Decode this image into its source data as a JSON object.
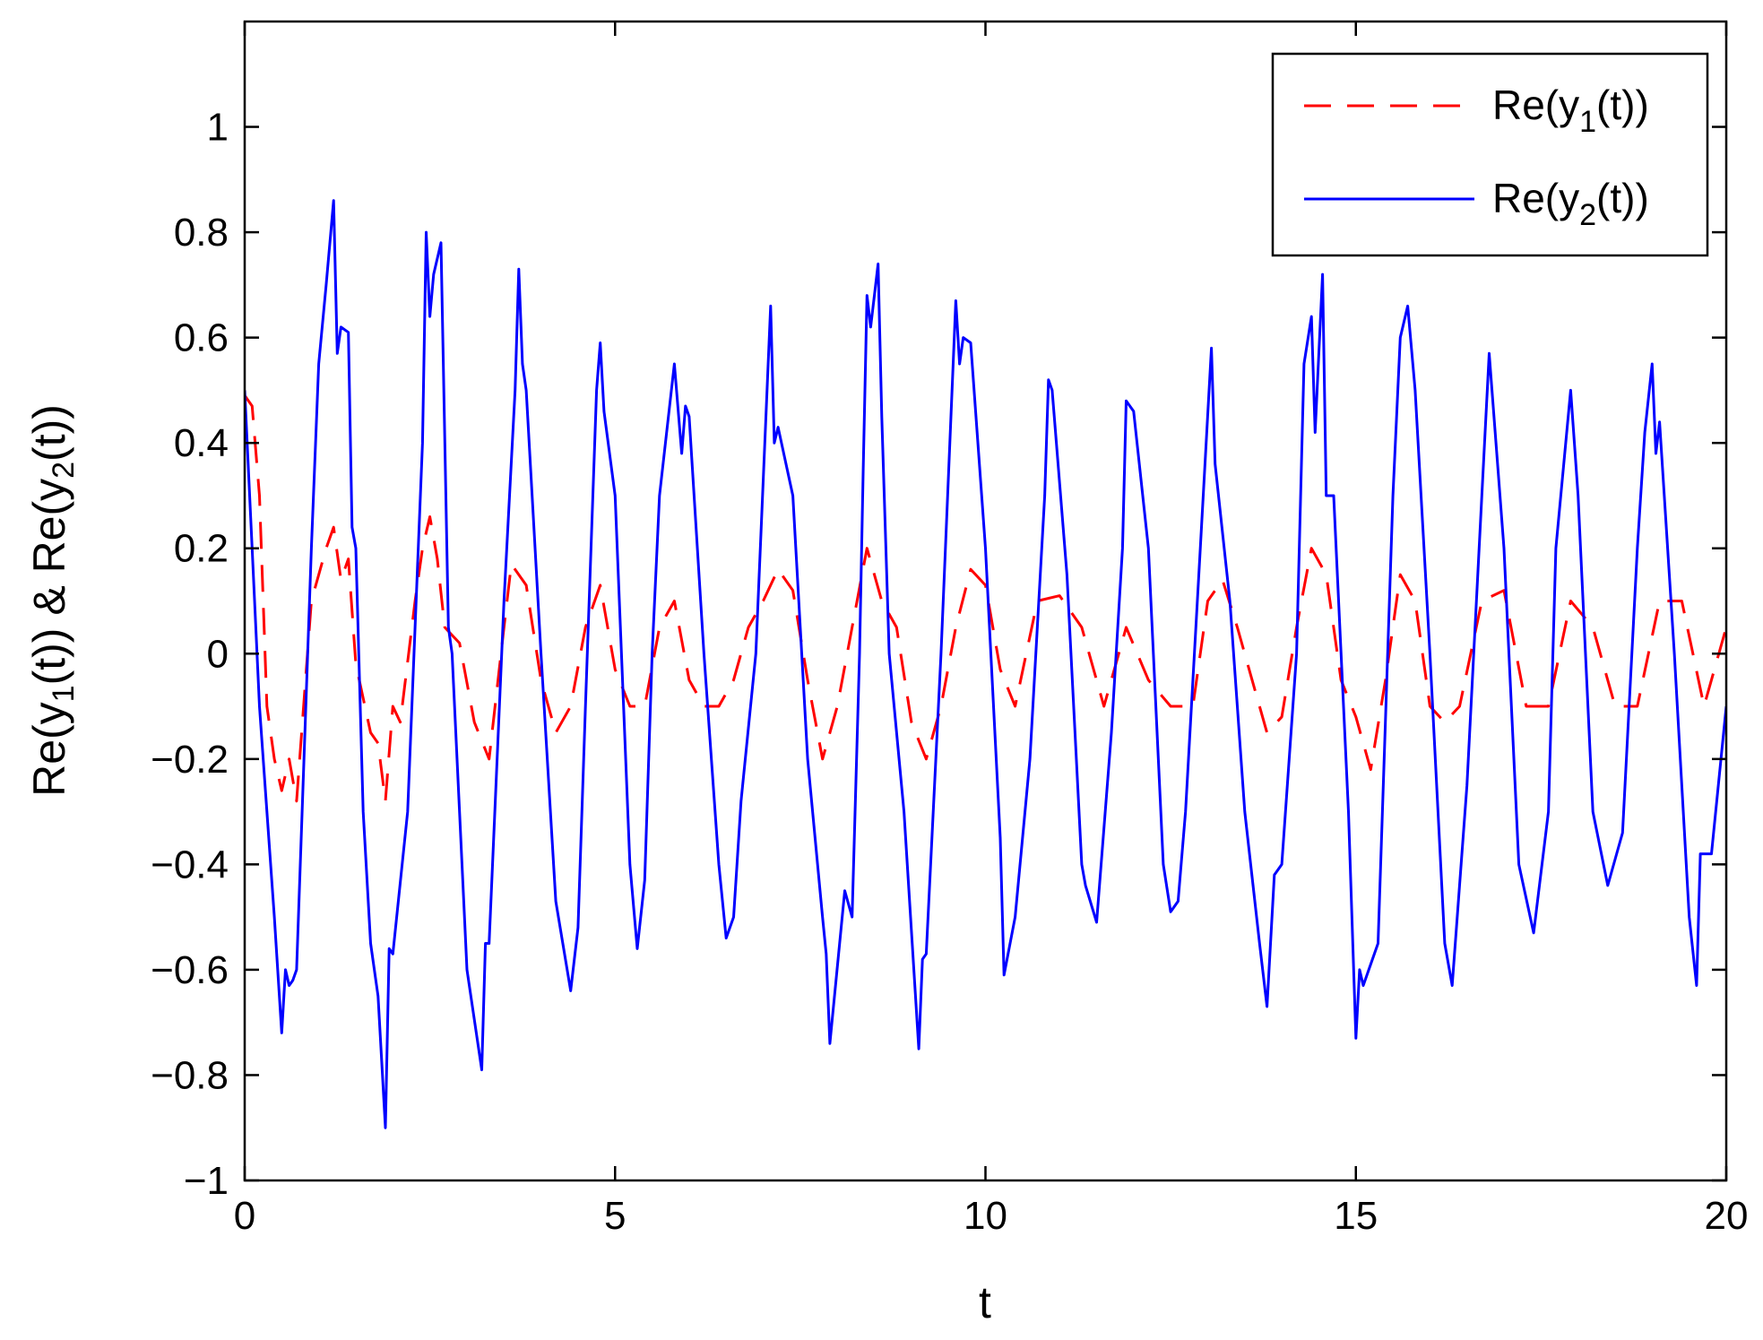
{
  "chart_data": {
    "type": "line",
    "title": "",
    "xlabel": "t",
    "ylabel": "Re(y1(t)) & Re(y2(t))",
    "xlim": [
      0,
      20
    ],
    "ylim": [
      -1,
      1.2
    ],
    "xticks": [
      0,
      5,
      10,
      15,
      20
    ],
    "xtick_labels": [
      "0",
      "5",
      "10",
      "15",
      "20"
    ],
    "yticks": [
      -1,
      -0.8,
      -0.6,
      -0.4,
      -0.2,
      0,
      0.2,
      0.4,
      0.6,
      0.8,
      1
    ],
    "ytick_labels": [
      "−1",
      "−0.8",
      "−0.6",
      "−0.4",
      "−0.2",
      "0",
      "0.2",
      "0.4",
      "0.6",
      "0.8",
      "1"
    ],
    "grid": false,
    "legend_position": "top-right",
    "series": [
      {
        "name": "Re(y1(t))",
        "color": "#ff0000",
        "style": "dashed",
        "x": [
          0,
          0.1,
          0.2,
          0.3,
          0.4,
          0.5,
          0.6,
          0.7,
          0.9,
          1.1,
          1.2,
          1.3,
          1.4,
          1.5,
          1.7,
          1.8,
          1.9,
          2.0,
          2.1,
          2.3,
          2.4,
          2.5,
          2.6,
          2.7,
          2.9,
          3.1,
          3.3,
          3.5,
          3.6,
          3.8,
          4.0,
          4.2,
          4.4,
          4.6,
          4.8,
          5.0,
          5.2,
          5.4,
          5.6,
          5.8,
          6.0,
          6.2,
          6.4,
          6.6,
          6.8,
          7.0,
          7.2,
          7.4,
          7.6,
          7.8,
          8.0,
          8.2,
          8.4,
          8.6,
          8.8,
          9.0,
          9.2,
          9.4,
          9.6,
          9.8,
          10.0,
          10.2,
          10.4,
          10.7,
          11.0,
          11.3,
          11.6,
          11.9,
          12.2,
          12.5,
          12.8,
          13.0,
          13.2,
          13.4,
          13.6,
          13.8,
          14.0,
          14.2,
          14.4,
          14.6,
          14.8,
          15.0,
          15.2,
          15.4,
          15.6,
          15.8,
          16.0,
          16.2,
          16.4,
          16.7,
          17.0,
          17.3,
          17.6,
          17.9,
          18.2,
          18.5,
          18.8,
          19.1,
          19.4,
          19.7,
          20.0
        ],
        "values": [
          0.49,
          0.47,
          0.3,
          -0.1,
          -0.2,
          -0.26,
          -0.2,
          -0.28,
          0.1,
          0.2,
          0.24,
          0.14,
          0.18,
          -0.02,
          -0.15,
          -0.17,
          -0.28,
          -0.1,
          -0.13,
          0.1,
          0.2,
          0.26,
          0.18,
          0.05,
          0.02,
          -0.13,
          -0.2,
          0.05,
          0.17,
          0.13,
          -0.05,
          -0.15,
          -0.1,
          0.05,
          0.13,
          -0.03,
          -0.1,
          -0.1,
          0.05,
          0.1,
          -0.05,
          -0.1,
          -0.1,
          -0.05,
          0.05,
          0.1,
          0.16,
          0.12,
          -0.05,
          -0.2,
          -0.1,
          0.05,
          0.2,
          0.1,
          0.05,
          -0.13,
          -0.2,
          -0.1,
          0.05,
          0.16,
          0.13,
          -0.03,
          -0.1,
          0.1,
          0.11,
          0.05,
          -0.1,
          0.05,
          -0.05,
          -0.1,
          -0.1,
          0.1,
          0.14,
          0.05,
          -0.05,
          -0.15,
          -0.12,
          0.05,
          0.2,
          0.15,
          -0.05,
          -0.12,
          -0.22,
          -0.05,
          0.15,
          0.1,
          -0.1,
          -0.13,
          -0.1,
          0.1,
          0.12,
          -0.1,
          -0.1,
          0.1,
          0.05,
          -0.1,
          -0.1,
          0.1,
          0.1,
          -0.1,
          0.05
        ]
      },
      {
        "name": "Re(y2(t))",
        "color": "#0000ff",
        "style": "solid",
        "x": [
          0,
          0.1,
          0.2,
          0.3,
          0.4,
          0.5,
          0.55,
          0.6,
          0.65,
          0.7,
          0.9,
          1.0,
          1.1,
          1.2,
          1.25,
          1.3,
          1.4,
          1.45,
          1.5,
          1.6,
          1.7,
          1.8,
          1.9,
          1.95,
          2.0,
          2.2,
          2.4,
          2.45,
          2.5,
          2.55,
          2.65,
          2.75,
          2.8,
          3.0,
          3.2,
          3.25,
          3.3,
          3.5,
          3.65,
          3.7,
          3.75,
          3.8,
          4.0,
          4.2,
          4.4,
          4.5,
          4.6,
          4.75,
          4.8,
          4.85,
          5.0,
          5.2,
          5.3,
          5.4,
          5.5,
          5.6,
          5.8,
          5.9,
          5.95,
          6.0,
          6.2,
          6.4,
          6.5,
          6.6,
          6.7,
          6.9,
          7.1,
          7.15,
          7.2,
          7.4,
          7.6,
          7.8,
          7.85,
          7.9,
          8.1,
          8.2,
          8.3,
          8.35,
          8.4,
          8.45,
          8.55,
          8.6,
          8.7,
          8.9,
          9.1,
          9.15,
          9.2,
          9.4,
          9.6,
          9.65,
          9.7,
          9.8,
          10.0,
          10.2,
          10.25,
          10.4,
          10.6,
          10.8,
          10.85,
          10.9,
          11.1,
          11.3,
          11.35,
          11.5,
          11.7,
          11.85,
          11.9,
          12.0,
          12.2,
          12.4,
          12.5,
          12.6,
          12.7,
          12.9,
          13.05,
          13.1,
          13.3,
          13.5,
          13.7,
          13.8,
          13.9,
          14.0,
          14.2,
          14.3,
          14.4,
          14.45,
          14.55,
          14.6,
          14.7,
          14.9,
          15.0,
          15.05,
          15.1,
          15.3,
          15.5,
          15.6,
          15.7,
          15.8,
          16.0,
          16.2,
          16.3,
          16.5,
          16.7,
          16.8,
          17.0,
          17.2,
          17.4,
          17.6,
          17.7,
          17.9,
          18.0,
          18.2,
          18.4,
          18.6,
          18.8,
          18.9,
          19.0,
          19.05,
          19.1,
          19.3,
          19.5,
          19.6,
          19.65,
          19.8,
          20.0
        ],
        "values": [
          0.5,
          0.2,
          -0.1,
          -0.3,
          -0.5,
          -0.72,
          -0.6,
          -0.63,
          -0.62,
          -0.6,
          0.2,
          0.55,
          0.7,
          0.86,
          0.57,
          0.62,
          0.61,
          0.24,
          0.2,
          -0.3,
          -0.55,
          -0.65,
          -0.9,
          -0.56,
          -0.57,
          -0.3,
          0.4,
          0.8,
          0.64,
          0.72,
          0.78,
          0.05,
          0.0,
          -0.6,
          -0.79,
          -0.55,
          -0.55,
          0.1,
          0.5,
          0.73,
          0.55,
          0.5,
          0.0,
          -0.47,
          -0.64,
          -0.52,
          -0.1,
          0.5,
          0.59,
          0.46,
          0.3,
          -0.4,
          -0.56,
          -0.43,
          0.0,
          0.3,
          0.55,
          0.38,
          0.47,
          0.45,
          0.0,
          -0.4,
          -0.54,
          -0.5,
          -0.28,
          0.0,
          0.66,
          0.4,
          0.43,
          0.3,
          -0.2,
          -0.5,
          -0.57,
          -0.74,
          -0.45,
          -0.5,
          0.0,
          0.35,
          0.68,
          0.62,
          0.74,
          0.45,
          0.0,
          -0.3,
          -0.75,
          -0.58,
          -0.57,
          0.0,
          0.67,
          0.55,
          0.6,
          0.59,
          0.2,
          -0.35,
          -0.61,
          -0.5,
          -0.2,
          0.3,
          0.52,
          0.5,
          0.15,
          -0.4,
          -0.44,
          -0.51,
          -0.15,
          0.2,
          0.48,
          0.46,
          0.2,
          -0.4,
          -0.49,
          -0.47,
          -0.3,
          0.2,
          0.58,
          0.36,
          0.1,
          -0.3,
          -0.55,
          -0.67,
          -0.42,
          -0.4,
          0.0,
          0.55,
          0.64,
          0.42,
          0.72,
          0.3,
          0.3,
          -0.3,
          -0.73,
          -0.6,
          -0.63,
          -0.55,
          0.3,
          0.6,
          0.66,
          0.5,
          0.0,
          -0.55,
          -0.63,
          -0.25,
          0.3,
          0.57,
          0.2,
          -0.4,
          -0.53,
          -0.3,
          0.2,
          0.5,
          0.3,
          -0.3,
          -0.44,
          -0.34,
          0.2,
          0.42,
          0.55,
          0.38,
          0.44,
          0.0,
          -0.5,
          -0.63,
          -0.38,
          -0.38,
          -0.1
        ]
      }
    ]
  }
}
